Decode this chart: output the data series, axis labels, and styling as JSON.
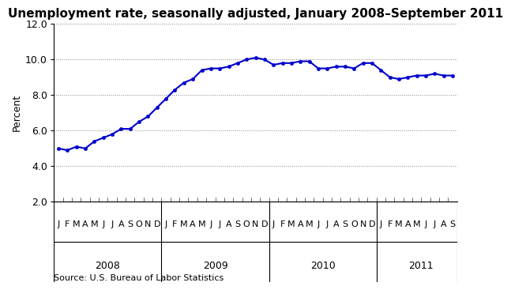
{
  "title": "Unemployment rate, seasonally adjusted, January 2008–September 2011",
  "ylabel": "Percent",
  "source": "Source: U.S. Bureau of Labor Statistics",
  "ylim": [
    2.0,
    12.0
  ],
  "yticks": [
    2.0,
    4.0,
    6.0,
    8.0,
    10.0,
    12.0
  ],
  "line_color": "#0000CC",
  "marker_color": "#0000CC",
  "background_color": "#ffffff",
  "values": [
    5.0,
    4.9,
    5.1,
    5.0,
    5.4,
    5.6,
    5.8,
    6.1,
    6.1,
    6.5,
    6.8,
    7.3,
    7.8,
    8.3,
    8.7,
    8.9,
    9.4,
    9.5,
    9.5,
    9.6,
    9.8,
    10.0,
    10.1,
    10.0,
    9.7,
    9.8,
    9.8,
    9.9,
    9.9,
    9.5,
    9.5,
    9.6,
    9.6,
    9.5,
    9.8,
    9.8,
    9.4,
    9.0,
    8.9,
    9.0,
    9.1,
    9.1,
    9.2,
    9.1,
    9.1
  ],
  "month_labels": [
    "J",
    "F",
    "M",
    "A",
    "M",
    "J",
    "J",
    "A",
    "S",
    "O",
    "N",
    "D",
    "J",
    "F",
    "M",
    "A",
    "M",
    "J",
    "J",
    "A",
    "S",
    "O",
    "N",
    "D",
    "J",
    "F",
    "M",
    "A",
    "M",
    "J",
    "J",
    "A",
    "S",
    "O",
    "N",
    "D",
    "J",
    "F",
    "M",
    "A",
    "M",
    "J",
    "J",
    "A",
    "S"
  ],
  "year_label_centers": [
    5.5,
    17.5,
    29.5,
    40.5
  ],
  "year_labels": [
    "2008",
    "2009",
    "2010",
    "2011"
  ],
  "divider_x": [
    -0.5,
    11.5,
    23.5,
    35.5,
    44.5
  ],
  "title_fontsize": 11,
  "label_fontsize": 9,
  "month_fontsize": 8,
  "year_fontsize": 9,
  "source_fontsize": 8
}
